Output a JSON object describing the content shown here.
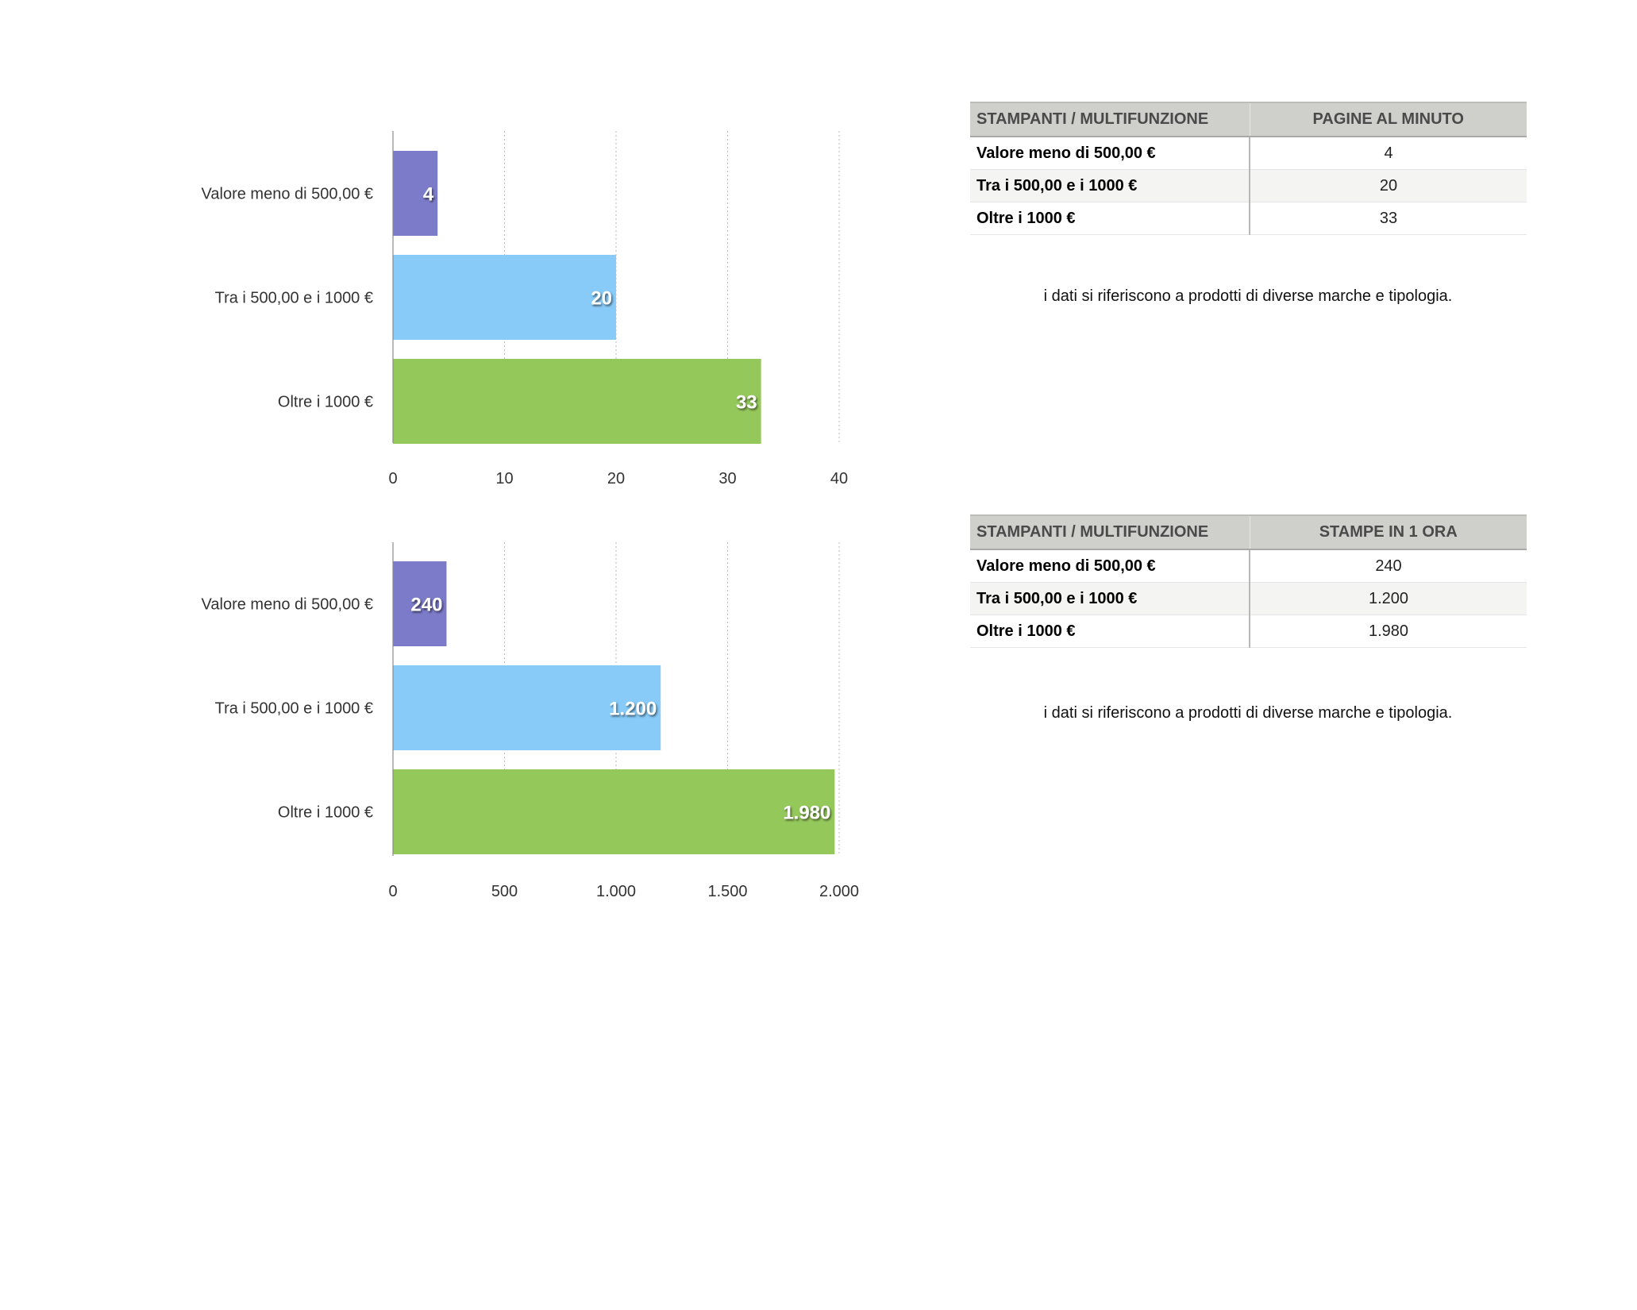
{
  "colors": {
    "bar_1": "#7b7bc9",
    "bar_2": "#88cbf8",
    "bar_3": "#95c85b",
    "grid": "#b8b8b8",
    "table_header_bg": "#cfcfcb"
  },
  "chart_data": [
    {
      "type": "bar",
      "orientation": "horizontal",
      "categories": [
        "Valore meno di 500,00 €",
        "Tra i 500,00 e i 1000 €",
        "Oltre i 1000 €"
      ],
      "values": [
        4,
        20,
        33
      ],
      "value_labels": [
        "4",
        "20",
        "33"
      ],
      "xlim": [
        0,
        40
      ],
      "ticks": [
        0,
        10,
        20,
        30,
        40
      ],
      "tick_labels": [
        "0",
        "10",
        "20",
        "30",
        "40"
      ],
      "grid": true
    },
    {
      "type": "bar",
      "orientation": "horizontal",
      "categories": [
        "Valore meno di 500,00 €",
        "Tra i 500,00 e i 1000 €",
        "Oltre i 1000 €"
      ],
      "values": [
        240,
        1200,
        1980
      ],
      "value_labels": [
        "240",
        "1.200",
        "1.980"
      ],
      "xlim": [
        0,
        2000
      ],
      "ticks": [
        0,
        500,
        1000,
        1500,
        2000
      ],
      "tick_labels": [
        "0",
        "500",
        "1.000",
        "1.500",
        "2.000"
      ],
      "grid": true
    }
  ],
  "tables": [
    {
      "headers": [
        "STAMPANTI / MULTIFUNZIONE",
        "PAGINE AL MINUTO"
      ],
      "rows": [
        [
          "Valore meno di 500,00 €",
          "4"
        ],
        [
          "Tra i 500,00 e i 1000 €",
          "20"
        ],
        [
          "Oltre i 1000 €",
          "33"
        ]
      ],
      "note": "i dati si riferiscono a prodotti di diverse marche e tipologia."
    },
    {
      "headers": [
        "STAMPANTI / MULTIFUNZIONE",
        "STAMPE IN 1 ORA"
      ],
      "rows": [
        [
          "Valore meno di 500,00 €",
          "240"
        ],
        [
          "Tra i 500,00 e i 1000 €",
          "1.200"
        ],
        [
          "Oltre i 1000 €",
          "1.980"
        ]
      ],
      "note": "i dati si riferiscono a prodotti di diverse marche e tipologia."
    }
  ]
}
